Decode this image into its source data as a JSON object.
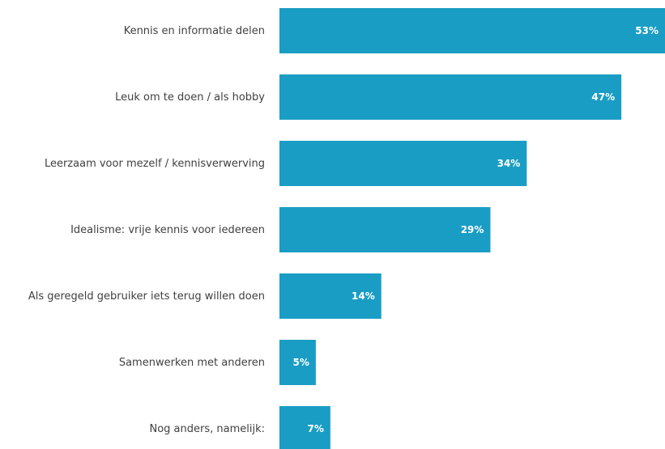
{
  "colors": {
    "bar": "#1a9dc4",
    "label": "#404040",
    "value_label": "#ffffff"
  },
  "chart_data": {
    "type": "bar",
    "orientation": "horizontal",
    "categories": [
      "Kennis en informatie delen",
      "Leuk om te doen / als hobby",
      "Leerzaam voor mezelf / kennisverwerving",
      "Idealisme: vrije kennis voor iedereen",
      "Als geregeld gebruiker iets terug willen doen",
      "Samenwerken met anderen",
      "Nog anders, namelijk:"
    ],
    "values": [
      53,
      47,
      34,
      29,
      14,
      5,
      7
    ],
    "value_labels": [
      "53%",
      "47%",
      "34%",
      "29%",
      "14%",
      "5%",
      "7%"
    ],
    "unit": "%",
    "xlim": [
      0,
      53
    ],
    "grid": false,
    "legend": "none"
  }
}
